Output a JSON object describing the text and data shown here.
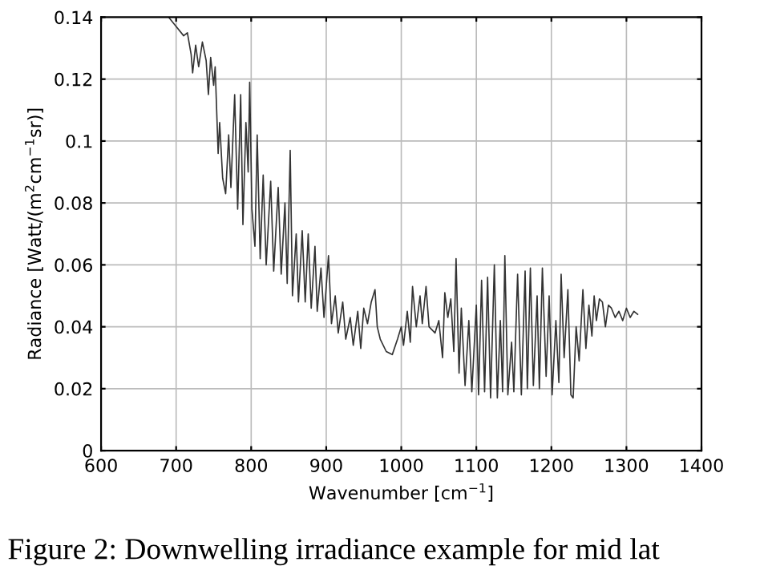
{
  "chart_data": {
    "type": "line",
    "xlabel": "Wavenumber [cm$^{−1}$]",
    "ylabel": "Radiance [Watt/(m$^{2}$cm$^{−1}$sr)]",
    "annotations": [
      "Figure 2: Downwelling irradiance example for mid lat"
    ],
    "xlim": [
      600,
      1400
    ],
    "ylim": [
      0,
      0.14
    ],
    "xticks": [
      600,
      700,
      800,
      900,
      1000,
      1100,
      1200,
      1300,
      1400
    ],
    "yticks": [
      0,
      0.02,
      0.04,
      0.06,
      0.08,
      0.1,
      0.12,
      0.14
    ],
    "grid": true,
    "legend": false,
    "marker": "none",
    "line_style": "solid",
    "series": [
      {
        "color": "#333333",
        "x": [
          690,
          700,
          710,
          715,
          720,
          722,
          726,
          730,
          735,
          740,
          743,
          746,
          750,
          752,
          756,
          758,
          762,
          766,
          770,
          773,
          778,
          782,
          786,
          789,
          793,
          796,
          798,
          801,
          805,
          808,
          812,
          816,
          820,
          826,
          830,
          836,
          840,
          845,
          848,
          852,
          855,
          860,
          863,
          868,
          872,
          876,
          880,
          885,
          888,
          893,
          897,
          903,
          907,
          912,
          916,
          922,
          926,
          932,
          936,
          942,
          946,
          950,
          955,
          960,
          965,
          968,
          972,
          980,
          988,
          995,
          1000,
          1003,
          1008,
          1012,
          1015,
          1020,
          1025,
          1028,
          1033,
          1037,
          1045,
          1050,
          1055,
          1058,
          1062,
          1066,
          1070,
          1073,
          1077,
          1080,
          1085,
          1090,
          1094,
          1100,
          1103,
          1107,
          1111,
          1115,
          1119,
          1124,
          1128,
          1132,
          1135,
          1138,
          1142,
          1147,
          1150,
          1155,
          1160,
          1165,
          1168,
          1172,
          1176,
          1181,
          1184,
          1188,
          1193,
          1197,
          1201,
          1206,
          1210,
          1213,
          1217,
          1222,
          1226,
          1229,
          1233,
          1237,
          1242,
          1246,
          1250,
          1254,
          1257,
          1260,
          1264,
          1268,
          1272,
          1276,
          1280,
          1285,
          1290,
          1295,
          1300,
          1305,
          1310,
          1315
        ],
        "values": [
          0.14,
          0.137,
          0.134,
          0.135,
          0.128,
          0.122,
          0.131,
          0.124,
          0.132,
          0.126,
          0.115,
          0.127,
          0.118,
          0.124,
          0.096,
          0.106,
          0.088,
          0.083,
          0.102,
          0.085,
          0.115,
          0.078,
          0.115,
          0.073,
          0.106,
          0.09,
          0.119,
          0.078,
          0.066,
          0.102,
          0.062,
          0.089,
          0.06,
          0.087,
          0.058,
          0.085,
          0.057,
          0.08,
          0.054,
          0.097,
          0.05,
          0.07,
          0.048,
          0.071,
          0.048,
          0.07,
          0.046,
          0.066,
          0.045,
          0.059,
          0.043,
          0.063,
          0.041,
          0.05,
          0.038,
          0.048,
          0.036,
          0.043,
          0.034,
          0.045,
          0.033,
          0.046,
          0.041,
          0.048,
          0.052,
          0.04,
          0.036,
          0.032,
          0.031,
          0.036,
          0.04,
          0.034,
          0.045,
          0.035,
          0.053,
          0.04,
          0.05,
          0.041,
          0.053,
          0.04,
          0.038,
          0.042,
          0.03,
          0.051,
          0.043,
          0.049,
          0.032,
          0.062,
          0.025,
          0.046,
          0.021,
          0.042,
          0.019,
          0.047,
          0.018,
          0.055,
          0.019,
          0.056,
          0.017,
          0.06,
          0.017,
          0.042,
          0.019,
          0.063,
          0.018,
          0.035,
          0.019,
          0.057,
          0.018,
          0.058,
          0.02,
          0.059,
          0.021,
          0.05,
          0.02,
          0.059,
          0.024,
          0.05,
          0.018,
          0.042,
          0.022,
          0.057,
          0.03,
          0.052,
          0.018,
          0.017,
          0.04,
          0.029,
          0.052,
          0.033,
          0.047,
          0.037,
          0.05,
          0.042,
          0.049,
          0.048,
          0.04,
          0.047,
          0.046,
          0.043,
          0.045,
          0.042,
          0.046,
          0.043,
          0.045,
          0.044
        ]
      }
    ]
  }
}
